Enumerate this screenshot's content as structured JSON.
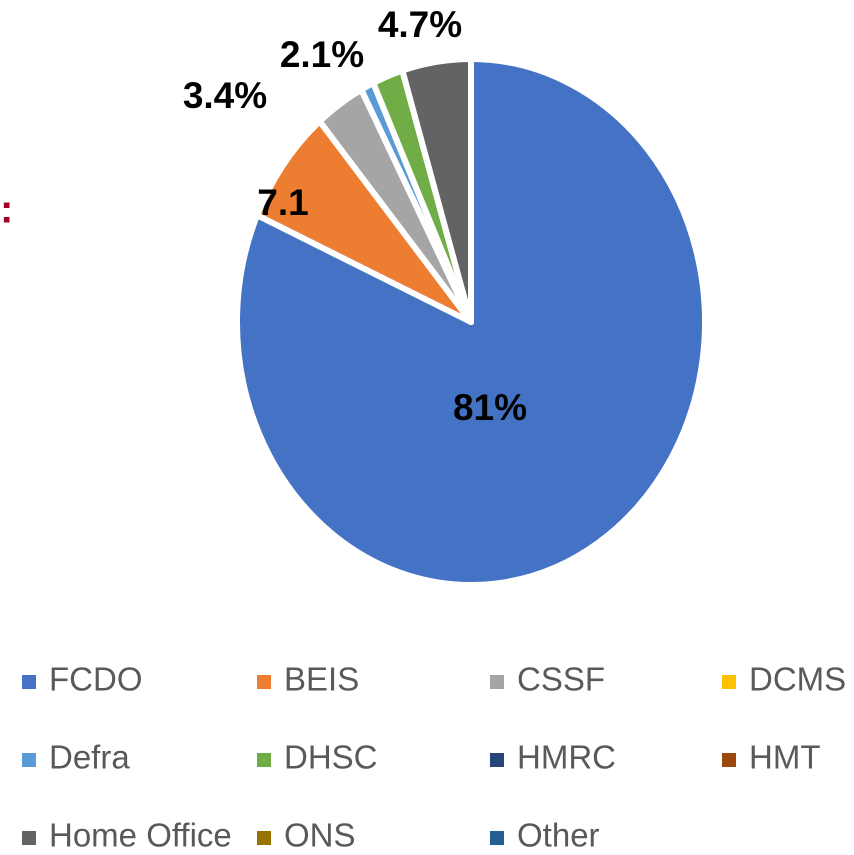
{
  "left_fragment": ":",
  "chart_data": {
    "type": "pie",
    "categories": [
      "FCDO",
      "BEIS",
      "CSSF",
      "DCMS",
      "Defra",
      "DHSC",
      "HMRC",
      "HMT",
      "Home Office",
      "ONS",
      "Other"
    ],
    "values": [
      81,
      7.1,
      3.4,
      0,
      0.9,
      2.1,
      0,
      0,
      4.7,
      0,
      0
    ],
    "value_labels": [
      "81%",
      "7.1",
      "3.4%",
      null,
      null,
      "2.1%",
      null,
      null,
      "4.7%",
      null,
      null
    ],
    "colors": [
      "#4472c4",
      "#ed7d31",
      "#a5a5a5",
      "#ffc000",
      "#5b9bd5",
      "#70ad47",
      "#264478",
      "#9e480e",
      "#636363",
      "#997300",
      "#255e91"
    ],
    "legend": "bottom"
  }
}
